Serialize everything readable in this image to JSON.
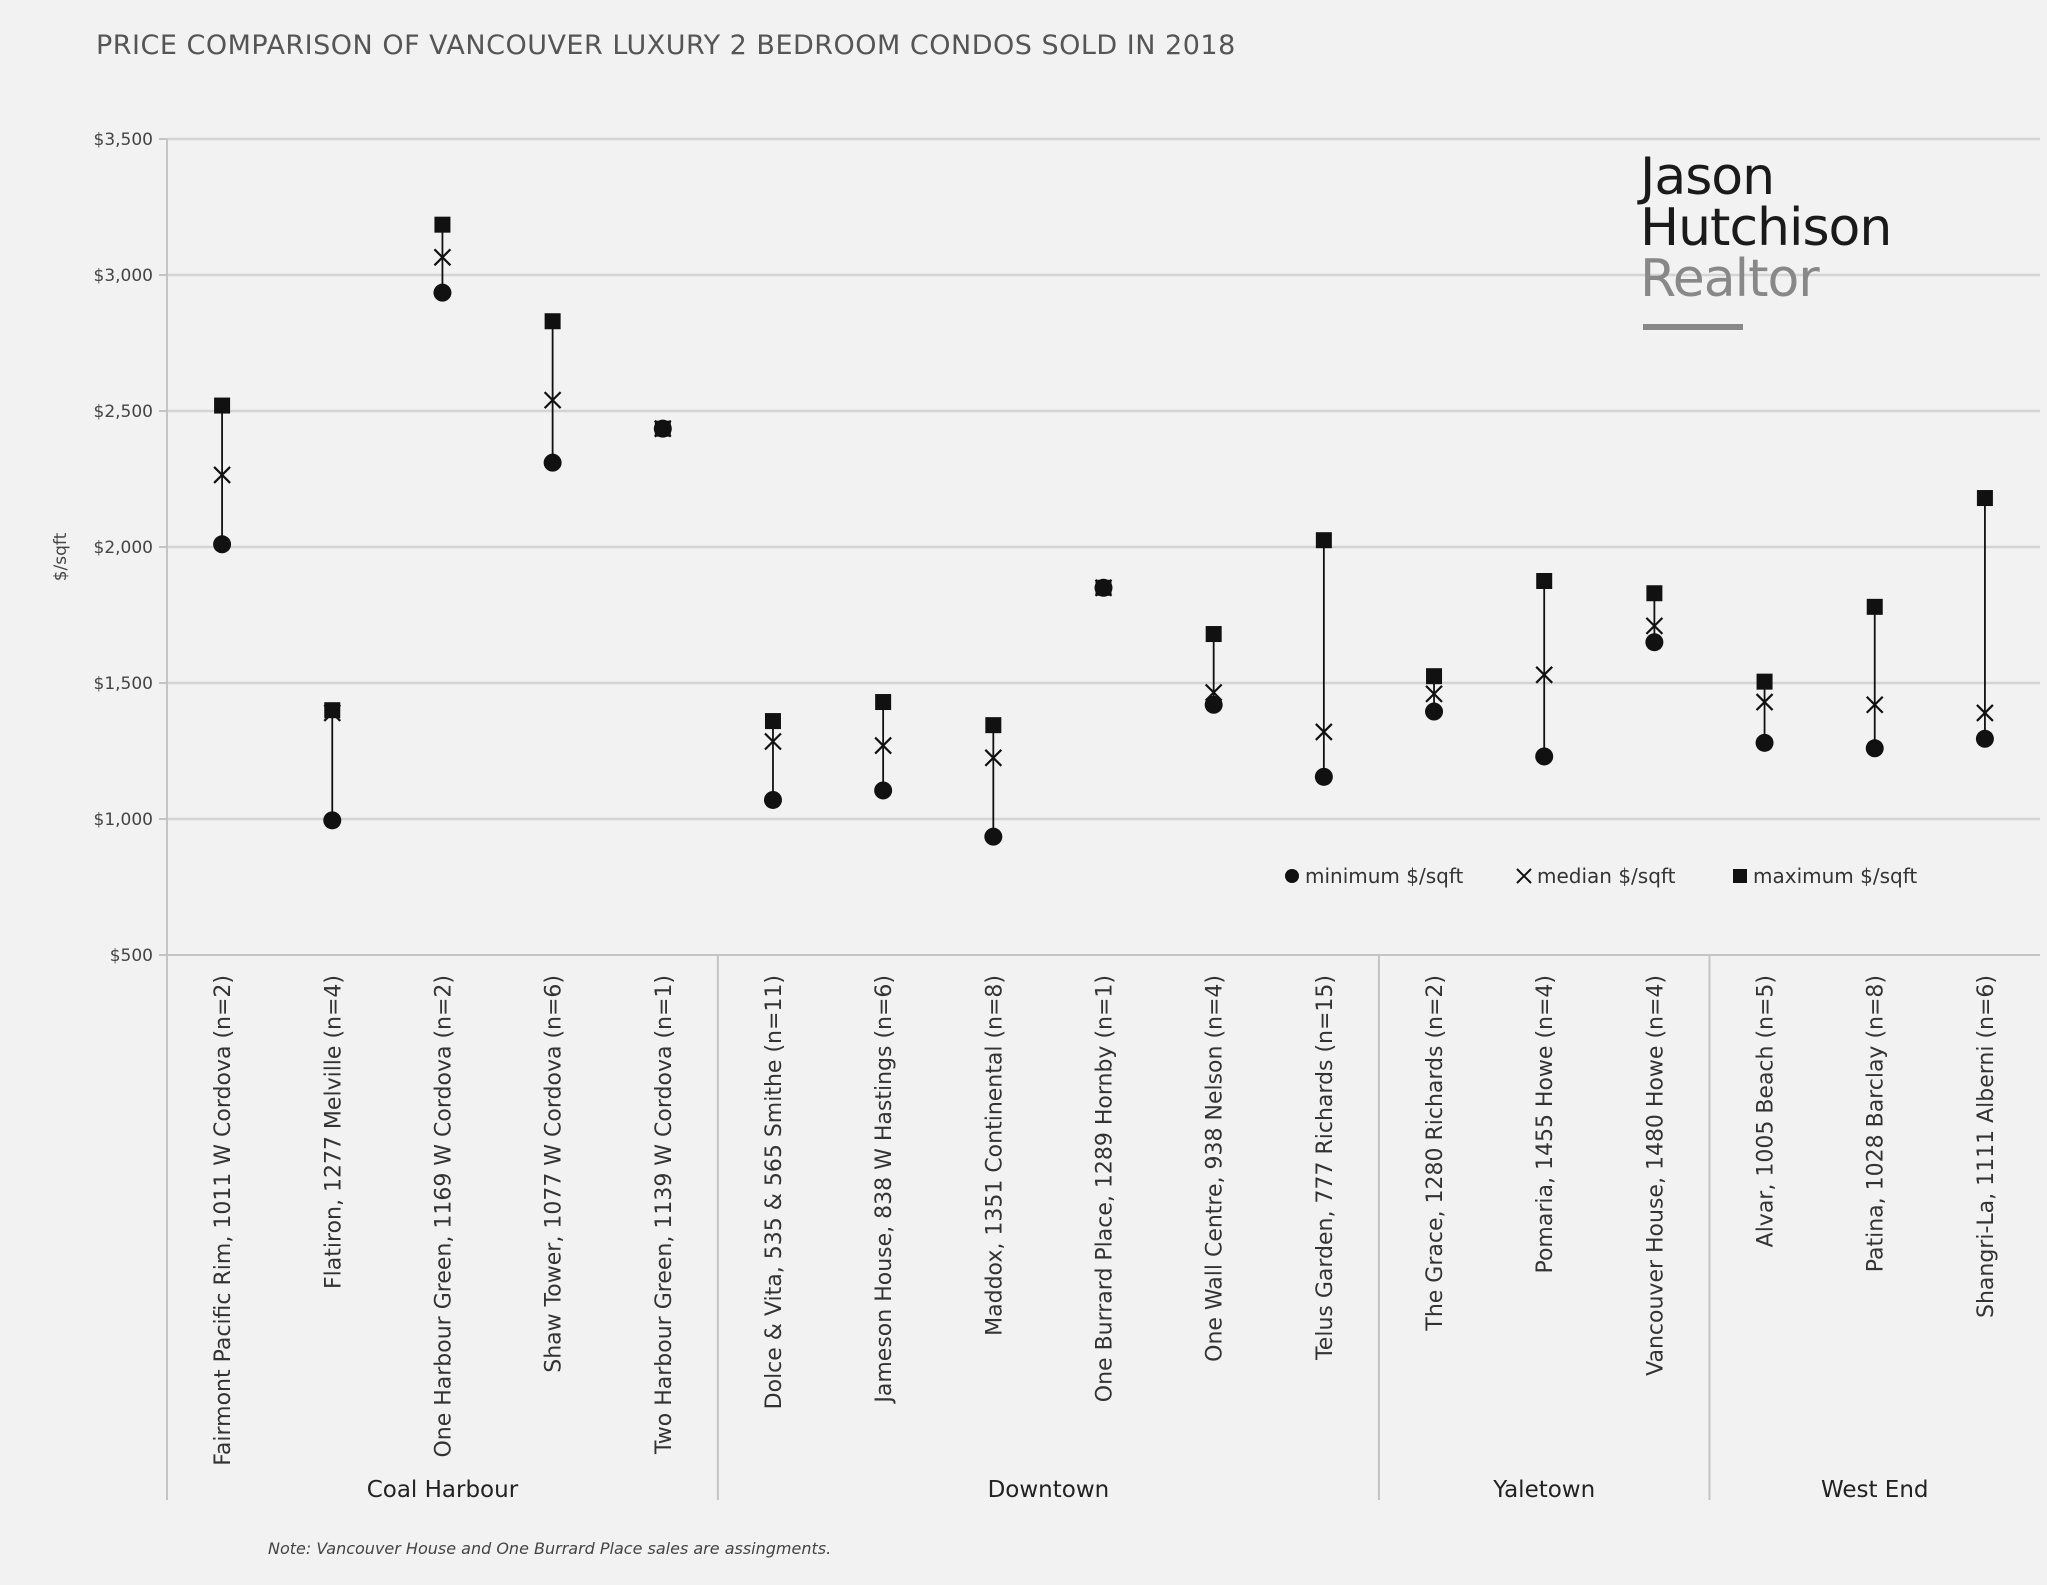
{
  "chart_data": {
    "type": "scatter",
    "title": "PRICE COMPARISON OF VANCOUVER LUXURY 2 BEDROOM CONDOS SOLD IN 2018",
    "ylabel": "$/sqft",
    "ylim": [
      500,
      3500
    ],
    "yticks": [
      "$500",
      "$1,000",
      "$1,500",
      "$2,000",
      "$2,500",
      "$3,000",
      "$3,500"
    ],
    "ytick_values": [
      500,
      1000,
      1500,
      2000,
      2500,
      3000,
      3500
    ],
    "grid": "horizontal",
    "legend_position": "bottom-right",
    "categories": [
      "Fairmont Pacific Rim, 1011 W Cordova (n=2)",
      "Flatiron, 1277 Melville (n=4)",
      "One Harbour Green, 1169 W Cordova (n=2)",
      "Shaw Tower, 1077 W Cordova (n=6)",
      "Two Harbour Green, 1139 W Cordova (n=1)",
      "Dolce & Vita, 535 & 565 Smithe (n=11)",
      "Jameson House, 838 W Hastings (n=6)",
      "Maddox, 1351 Continental (n=8)",
      "One Burrard Place, 1289 Hornby (n=1)",
      "One Wall Centre, 938 Nelson (n=4)",
      "Telus Garden, 777 Richards (n=15)",
      "The Grace, 1280 Richards (n=2)",
      "Pomaria, 1455 Howe (n=4)",
      "Vancouver House, 1480 Howe (n=4)",
      "Alvar, 1005 Beach (n=5)",
      "Patina, 1028 Barclay (n=8)",
      "Shangri-La, 1111 Alberni (n=6)"
    ],
    "groups": [
      {
        "name": "Coal Harbour",
        "count": 5
      },
      {
        "name": "Downtown",
        "count": 6
      },
      {
        "name": "Yaletown",
        "count": 3
      },
      {
        "name": "West End",
        "count": 3
      }
    ],
    "series": [
      {
        "name": "minimum $/sqft",
        "marker": "circle",
        "values": [
          2010,
          995,
          2935,
          2310,
          2435,
          1070,
          1105,
          935,
          1850,
          1420,
          1155,
          1395,
          1230,
          1650,
          1280,
          1260,
          1295
        ]
      },
      {
        "name": "median $/sqft",
        "marker": "x",
        "values": [
          2265,
          1390,
          3065,
          2540,
          2435,
          1285,
          1270,
          1225,
          1850,
          1465,
          1320,
          1460,
          1530,
          1710,
          1430,
          1420,
          1390
        ]
      },
      {
        "name": "maximum $/sqft",
        "marker": "square",
        "values": [
          2520,
          1400,
          3185,
          2830,
          2435,
          1360,
          1430,
          1345,
          1850,
          1680,
          2025,
          1525,
          1875,
          1830,
          1505,
          1780,
          2180
        ]
      }
    ],
    "note": "Note: Vancouver House and One Burrard Place sales are assingments."
  },
  "logo": {
    "line1": "Jason",
    "line2": "Hutchison",
    "line3": "Realtor"
  },
  "colors": {
    "background": "#f2f2f2",
    "grid": "#d4d4d4",
    "marker": "#111111",
    "logo_dark": "#1a1a1a",
    "logo_grey": "#888888"
  }
}
